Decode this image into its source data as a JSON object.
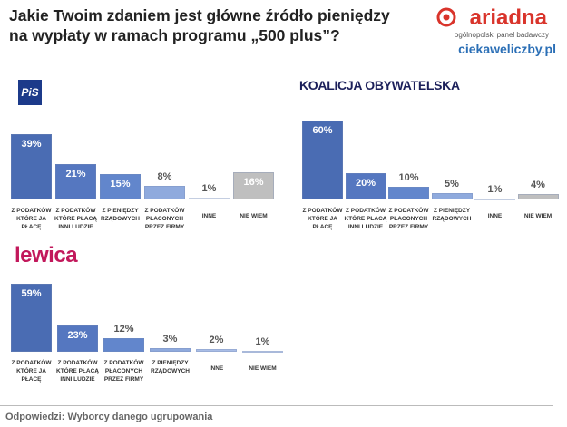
{
  "header": {
    "title": "Jakie Twoim zdaniem jest główne źródło pieniędzy na wypłaty w ramach programu „500 plus”?",
    "brand": "ariadna",
    "brand_subtitle": "ogólnopolski panel badawczy",
    "url": "ciekaweliczby.pl"
  },
  "chart_data": [
    {
      "type": "bar",
      "title": "PiS",
      "categories": [
        "Z PODATKÓW KTÓRE JA PŁACĘ",
        "Z PODATKÓW KTÓRE PŁACĄ INNI LUDZIE",
        "Z PIENIĘDZY RZĄDOWYCH",
        "Z PODATKÓW PŁACONYCH PRZEZ FIRMY",
        "INNE",
        "NIE WIEM"
      ],
      "values": [
        39,
        21,
        15,
        8,
        1,
        16
      ],
      "value_labels": [
        "39%",
        "21%",
        "15%",
        "8%",
        "1%",
        "16%"
      ],
      "colors": [
        "#4a6cb3",
        "#5577c0",
        "#6286cc",
        "#8faadd",
        "#edf1f9",
        "#bfbfbf"
      ]
    },
    {
      "type": "bar",
      "title": "KOALICJA OBYWATELSKA",
      "categories": [
        "Z PODATKÓW KTÓRE JA PŁACĘ",
        "Z PODATKÓW KTÓRE PŁACĄ INNI LUDZIE",
        "Z PODATKÓW PŁACONYCH PRZEZ FIRMY",
        "Z PIENIĘDZY RZĄDOWYCH",
        "INNE",
        "NIE WIEM"
      ],
      "values": [
        60,
        20,
        10,
        5,
        1,
        4
      ],
      "value_labels": [
        "60%",
        "20%",
        "10%",
        "5%",
        "1%",
        "4%"
      ],
      "colors": [
        "#4a6cb3",
        "#5577c0",
        "#6286cc",
        "#8faadd",
        "#edf1f9",
        "#bfbfbf"
      ]
    },
    {
      "type": "bar",
      "title": "lewica",
      "categories": [
        "Z PODATKÓW KTÓRE JA PŁACĘ",
        "Z PODATKÓW KTÓRE PŁACĄ INNI LUDZIE",
        "Z PODATKÓW PŁACONYCH PRZEZ FIRMY",
        "Z PIENIĘDZY RZĄDOWYCH",
        "INNE",
        "NIE WIEM"
      ],
      "values": [
        59,
        23,
        12,
        3,
        2,
        1
      ],
      "value_labels": [
        "59%",
        "23%",
        "12%",
        "3%",
        "2%",
        "1%"
      ],
      "colors": [
        "#4a6cb3",
        "#5577c0",
        "#6286cc",
        "#8faadd",
        "#a9bde6",
        "#c3d1ee"
      ]
    }
  ],
  "footer": "Odpowiedzi: Wyborcy danego ugrupowania"
}
